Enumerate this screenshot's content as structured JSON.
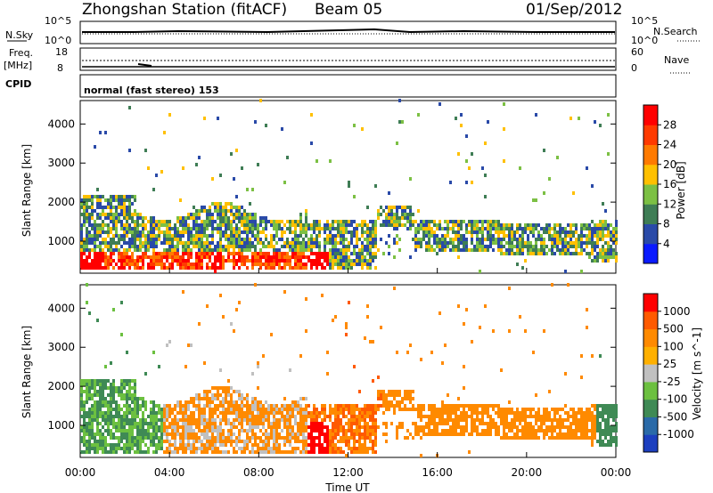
{
  "header": {
    "station": "Zhongshan Station (fitACF)",
    "beam": "Beam 05",
    "date": "01/Sep/2012"
  },
  "strips": {
    "nsky_label": "N.Sky",
    "nsearch_label": "N.Search",
    "nsky_ticks": [
      "10^5",
      "10^0"
    ],
    "nsearch_ticks": [
      "10^5",
      "10^0"
    ],
    "freq_label": "Freq.",
    "freq_unit": "[MHz]",
    "freq_ticks": [
      "18",
      "8"
    ],
    "nave_label": "Nave",
    "nave_ticks": [
      "60",
      "0"
    ],
    "cpid_label": "CPID",
    "cpid_text": "normal (fast stereo) 153"
  },
  "chart_data": [
    {
      "type": "heatmap",
      "name": "power",
      "ylabel": "Slant Range [km]",
      "yticks": [
        "1000",
        "2000",
        "3000",
        "4000"
      ],
      "ylim": [
        180,
        4600
      ],
      "xticks": [
        "00:00",
        "04:00",
        "08:00",
        "12:00",
        "16:00",
        "20:00",
        "00:00"
      ],
      "colorbar": {
        "label": "Power [dB]",
        "ticks": [
          "4",
          "8",
          "12",
          "16",
          "20",
          "24",
          "28"
        ],
        "colors": [
          "#0a1aff",
          "#2a4aa8",
          "#3f7d55",
          "#7cc044",
          "#ffc000",
          "#ff7a00",
          "#ff3a00",
          "#ff0000"
        ]
      }
    },
    {
      "type": "heatmap",
      "name": "velocity",
      "ylabel": "Slant Range [km]",
      "yticks": [
        "1000",
        "2000",
        "3000",
        "4000"
      ],
      "ylim": [
        180,
        4600
      ],
      "xticks": [
        "00:00",
        "04:00",
        "08:00",
        "12:00",
        "16:00",
        "20:00",
        "00:00"
      ],
      "xlabel": "Time UT",
      "colorbar": {
        "label": "Velocity [m s^-1]",
        "ticks": [
          "1000",
          "500",
          "100",
          "25",
          "-25",
          "-100",
          "-500",
          "-1000"
        ],
        "colors": [
          "#1c3fbf",
          "#2a6aa8",
          "#3f8a55",
          "#6cc040",
          "#c0c0c0",
          "#ffb000",
          "#ff8a00",
          "#ff5a00",
          "#ff0000"
        ]
      }
    }
  ]
}
